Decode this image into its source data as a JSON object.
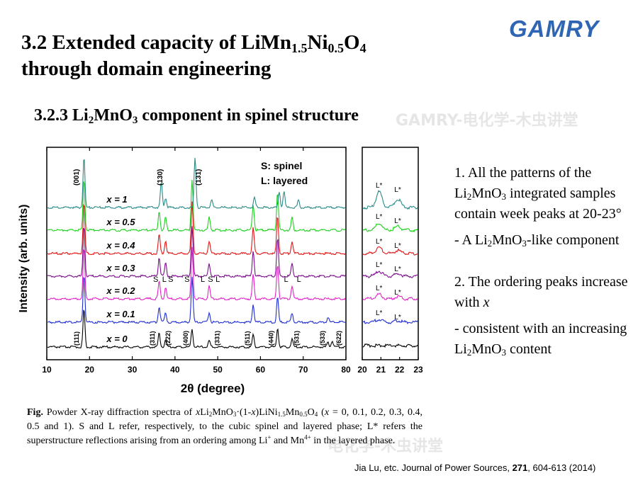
{
  "slide": {
    "title_line1_base": "3.2 Extended capacity of LiMn",
    "title_sub1": "1.5",
    "title_mid": "Ni",
    "title_sub2": "0.5",
    "title_o": "O",
    "title_sub3": "4",
    "title_line2": "through domain engineering",
    "subtitle_pre": "3.2.3 Li",
    "subtitle_sub1": "2",
    "subtitle_mn": "MnO",
    "subtitle_sub2": "3",
    "subtitle_post": " component in spinel structure",
    "logo_text": "GAMRY",
    "watermark_top": "GAMRY-电化学-木虫讲堂",
    "watermark_bottom": "电化学-木虫讲堂"
  },
  "bullets": {
    "b1_a": "1. All the patterns of the Li",
    "b1_sub1": "2",
    "b1_b": "MnO",
    "b1_sub2": "3",
    "b1_c": " integrated samples contain week peaks at 20-23°",
    "b2_a": "- A Li",
    "b2_sub1": "2",
    "b2_b": "MnO",
    "b2_sub2": "3",
    "b2_c": "-like component",
    "b3_a": "2. The ordering peaks increase with ",
    "b3_x": "x",
    "b4_a": "- consistent with an increasing Li",
    "b4_sub1": "2",
    "b4_b": "MnO",
    "b4_sub2": "3",
    "b4_c": " content"
  },
  "caption": {
    "fig": "Fig.",
    "t1": " Powder X-ray diffraction spectra of ",
    "t2": "x",
    "t3": "Li",
    "s1": "2",
    "t4": "MnO",
    "s2": "3",
    "t5": "·(1-",
    "t6": "x",
    "t7": ")LiNi",
    "s3": "1.5",
    "t8": "Mn",
    "s4": "0.5",
    "t9": "O",
    "s5": "4",
    "t10": " (",
    "t11": "x",
    "t12": " = 0, 0.1, 0.2, 0.3, 0.4, 0.5 and 1). S and L refer, respectively, to the cubic spinel and layered phase; L* refers the superstructure reflections arising from an ordering among Li",
    "p1": "+",
    "t13": " and Mn",
    "p2": "4+",
    "t14": " in the layered phase."
  },
  "citation": {
    "authors": "Jia Lu, etc. Journal of Power Sources, ",
    "volume": "271",
    "pages": ", 604-613 (2014)"
  },
  "chart_data": {
    "type": "line",
    "xlabel": "2θ (degree)",
    "ylabel": "Intensity (arb. units)",
    "main_panel": {
      "xlim": [
        10,
        80
      ],
      "xticks": [
        10,
        20,
        30,
        40,
        50,
        60,
        70,
        80
      ]
    },
    "inset_panel": {
      "xlim": [
        20,
        23
      ],
      "xticks": [
        20,
        21,
        22,
        23
      ]
    },
    "legend": [
      "S: spinel",
      "L: layered"
    ],
    "series": [
      {
        "name": "x = 0",
        "color": "#000000",
        "peaks": [
          [
            18.7,
            60
          ],
          [
            36.3,
            22
          ],
          [
            37.8,
            12
          ],
          [
            44.0,
            28
          ],
          [
            48.0,
            10
          ],
          [
            58.3,
            20
          ],
          [
            64.0,
            30
          ],
          [
            67.4,
            12
          ],
          [
            75.8,
            8
          ],
          [
            76.8,
            10
          ]
        ]
      },
      {
        "name": "x = 0.1",
        "color": "#1f2fd0",
        "peaks": [
          [
            18.7,
            75
          ],
          [
            36.3,
            25
          ],
          [
            37.8,
            15
          ],
          [
            44.0,
            70
          ],
          [
            48.0,
            15
          ],
          [
            58.3,
            28
          ],
          [
            64.0,
            40
          ],
          [
            67.4,
            15
          ],
          [
            75.8,
            8
          ]
        ]
      },
      {
        "name": "x = 0.2",
        "color": "#e023c8",
        "peaks": [
          [
            18.7,
            80
          ],
          [
            36.3,
            28
          ],
          [
            37.8,
            18
          ],
          [
            44.0,
            80
          ],
          [
            48.0,
            20
          ],
          [
            58.3,
            38
          ],
          [
            64.0,
            55
          ],
          [
            67.4,
            20
          ]
        ]
      },
      {
        "name": "x = 0.3",
        "color": "#7b0f8c",
        "peaks": [
          [
            18.7,
            80
          ],
          [
            36.3,
            30
          ],
          [
            37.8,
            20
          ],
          [
            44.0,
            80
          ],
          [
            48.0,
            20
          ],
          [
            58.3,
            40
          ],
          [
            64.0,
            60
          ],
          [
            67.4,
            20
          ]
        ]
      },
      {
        "name": "x = 0.4",
        "color": "#e01818",
        "peaks": [
          [
            18.7,
            80
          ],
          [
            36.3,
            30
          ],
          [
            37.8,
            20
          ],
          [
            44.0,
            80
          ],
          [
            48.0,
            20
          ],
          [
            58.3,
            40
          ],
          [
            64.0,
            60
          ],
          [
            67.4,
            20
          ]
        ]
      },
      {
        "name": "x = 0.5",
        "color": "#22d022",
        "peaks": [
          [
            18.7,
            80
          ],
          [
            36.3,
            30
          ],
          [
            37.8,
            20
          ],
          [
            44.0,
            80
          ],
          [
            48.0,
            20
          ],
          [
            58.3,
            40
          ],
          [
            64.0,
            60
          ],
          [
            67.4,
            20
          ]
        ]
      },
      {
        "name": "x = 1",
        "color": "#2a8c88",
        "peaks": [
          [
            18.7,
            80
          ],
          [
            36.8,
            40
          ],
          [
            37.8,
            15
          ],
          [
            44.7,
            80
          ],
          [
            48.6,
            12
          ],
          [
            58.6,
            15
          ],
          [
            64.4,
            25
          ],
          [
            65.5,
            25
          ],
          [
            68.9,
            12
          ]
        ]
      }
    ],
    "miller_x0": [
      {
        "label": "(111)",
        "x": 17.5
      },
      {
        "label": "(311)",
        "x": 35.2
      },
      {
        "label": "(222)",
        "x": 38.9
      },
      {
        "label": "(400)",
        "x": 43.0
      },
      {
        "label": "(331)",
        "x": 50.4
      },
      {
        "label": "(511)",
        "x": 57.4
      },
      {
        "label": "(440)",
        "x": 63.0
      },
      {
        "label": "(531)",
        "x": 69.0
      },
      {
        "label": "(533)",
        "x": 75.0
      },
      {
        "label": "(622)",
        "x": 78.8
      }
    ],
    "miller_x1": [
      {
        "label": "(001)",
        "x": 17.5
      },
      {
        "label": "(130)",
        "x": 37.0
      },
      {
        "label": "(131)",
        "x": 46.0
      }
    ],
    "phase_marks": [
      {
        "label": "S",
        "x": 35.5
      },
      {
        "label": "L",
        "x": 37.5
      },
      {
        "label": "S",
        "x": 39.0
      },
      {
        "label": "S",
        "x": 42.8
      },
      {
        "label": "L",
        "x": 46.5
      },
      {
        "label": "S",
        "x": 48.3
      },
      {
        "label": "L",
        "x": 50.0
      },
      {
        "label": "L",
        "x": 66.0
      },
      {
        "label": "L",
        "x": 69.0
      }
    ],
    "inset_marks": {
      "label": "L*",
      "x": [
        20.9,
        21.9
      ]
    }
  }
}
